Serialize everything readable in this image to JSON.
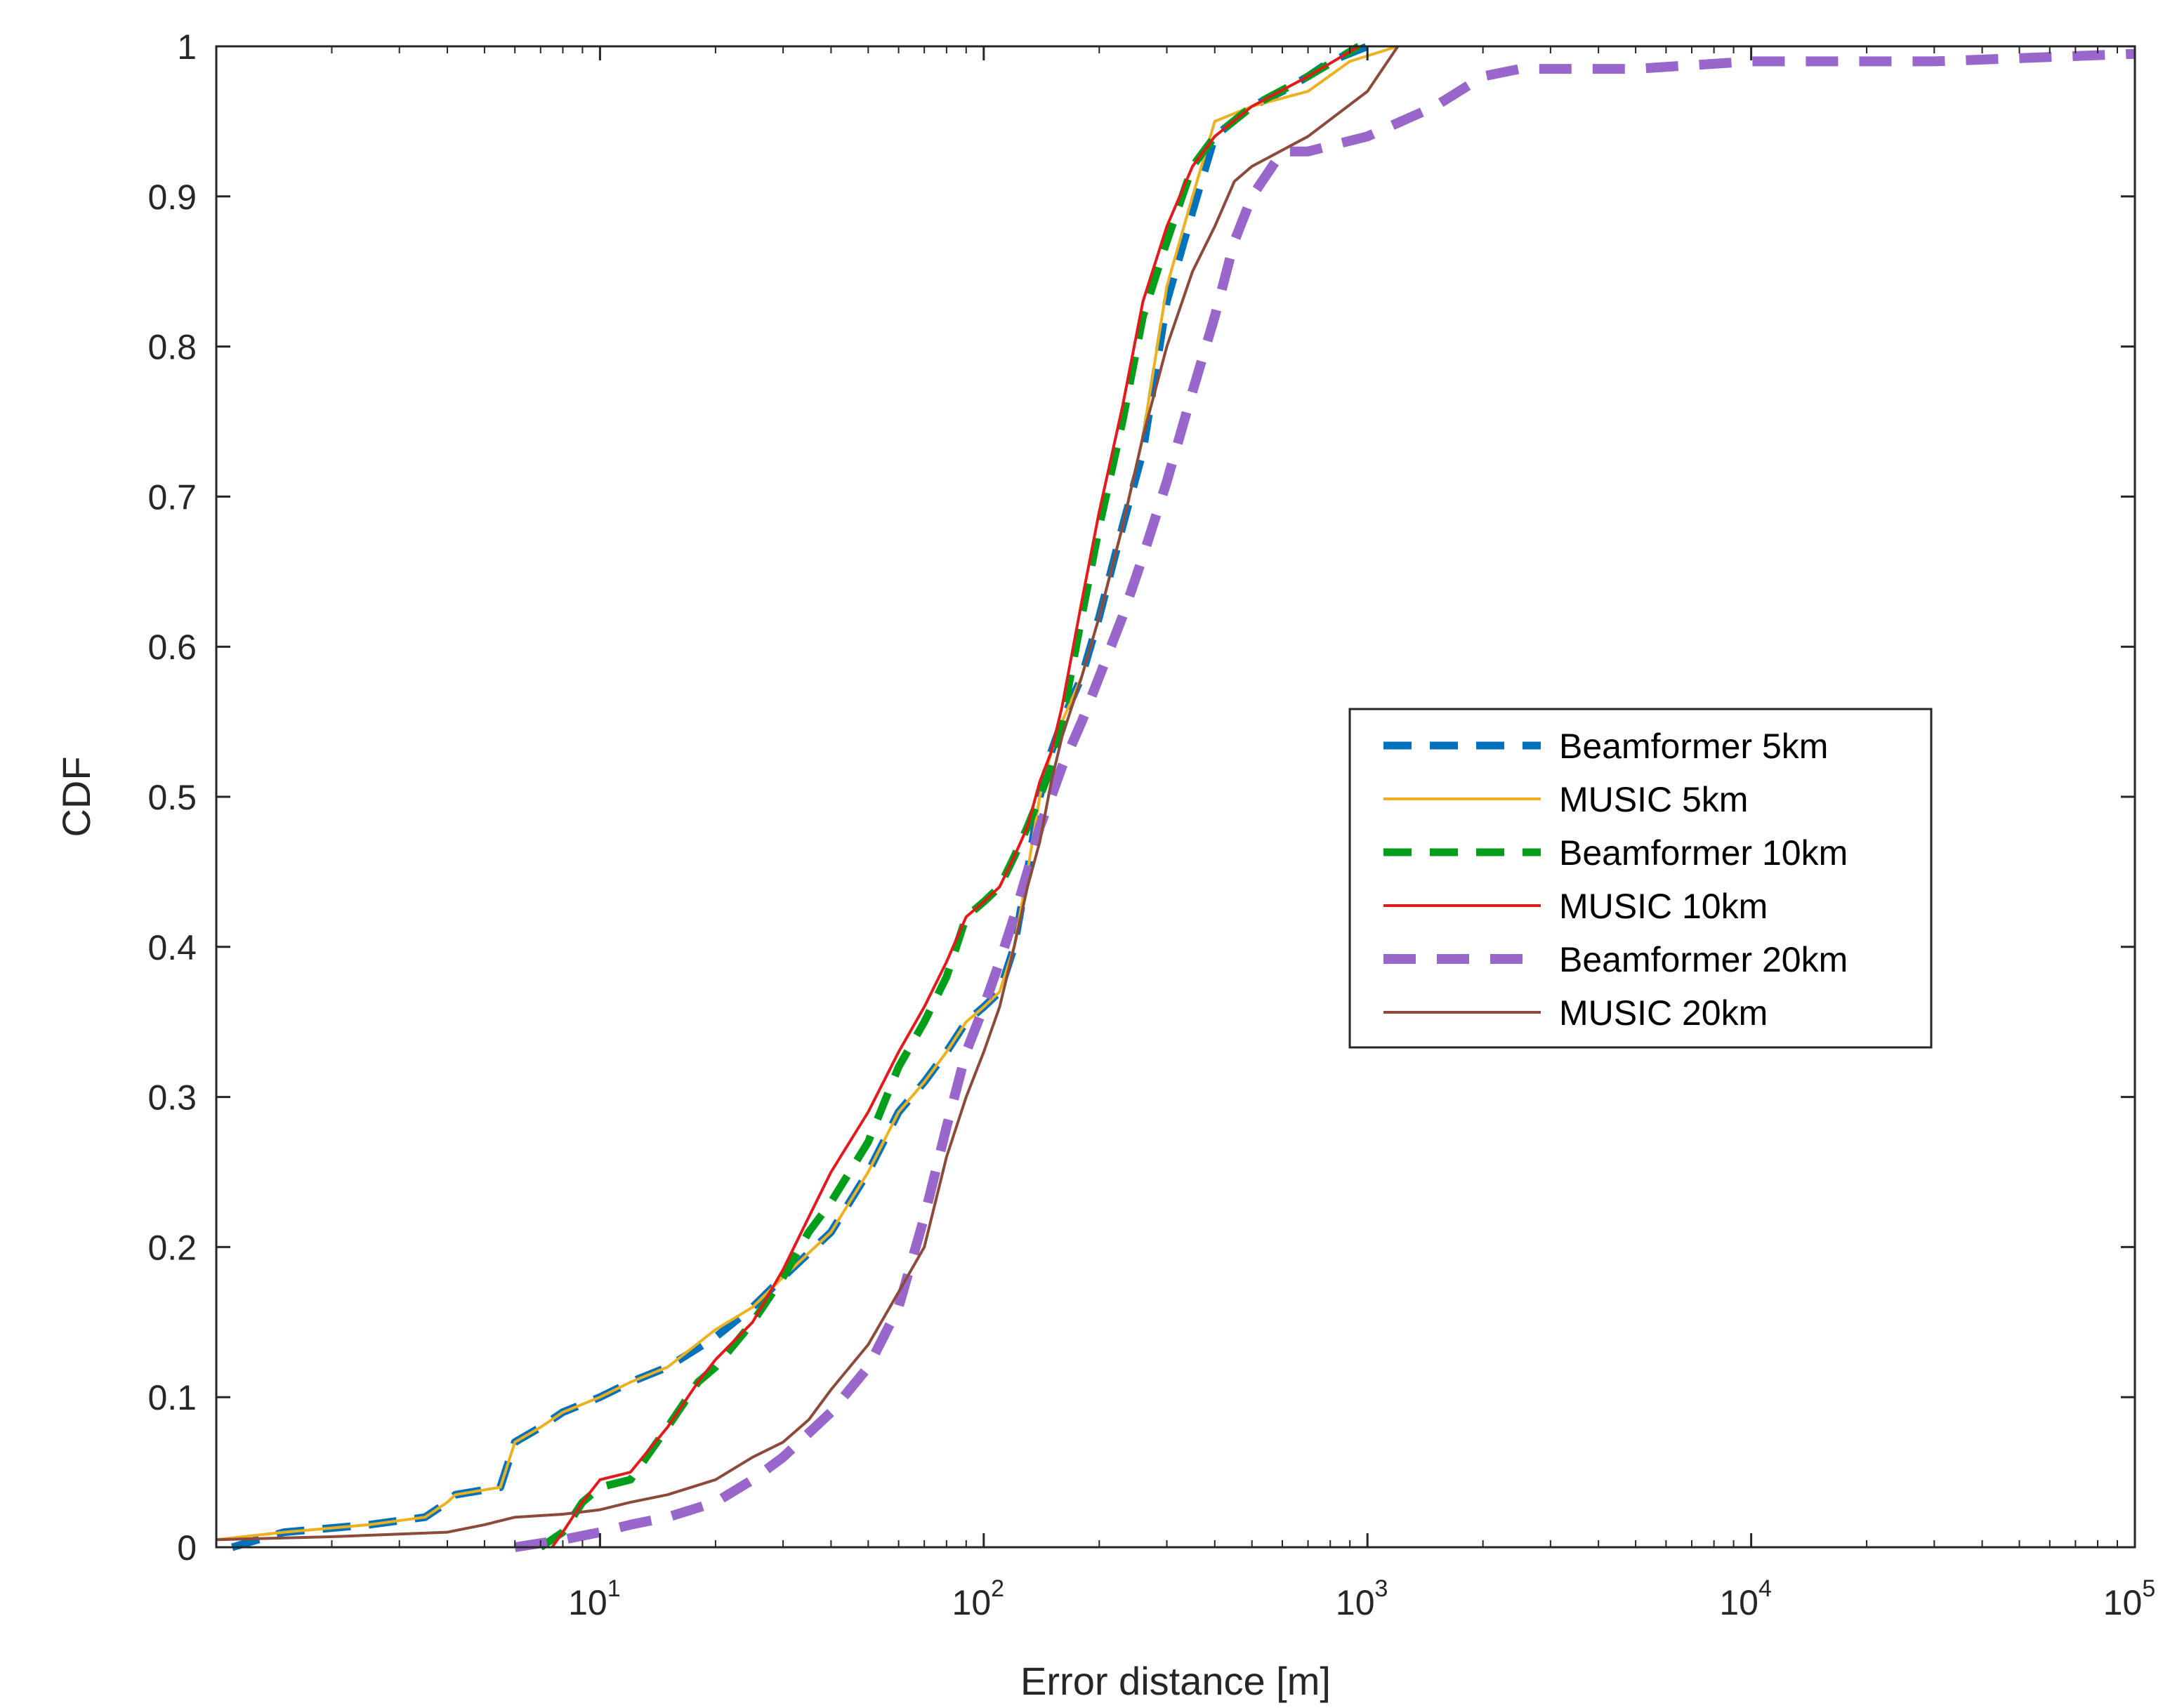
{
  "chart_data": {
    "type": "line",
    "title": "",
    "xlabel": "Error distance [m]",
    "ylabel": "CDF",
    "xscale": "log",
    "xlim": [
      1,
      100000
    ],
    "ylim": [
      0,
      1
    ],
    "grid": false,
    "legend_position": "right-center",
    "yticks": [
      0,
      0.1,
      0.2,
      0.3,
      0.4,
      0.5,
      0.6,
      0.7,
      0.8,
      0.9,
      1
    ],
    "ytick_labels": [
      "0",
      "0.1",
      "0.2",
      "0.3",
      "0.4",
      "0.5",
      "0.6",
      "0.7",
      "0.8",
      "0.9",
      "1"
    ],
    "xticks": [
      10,
      100,
      1000,
      10000,
      100000
    ],
    "xtick_labels": [
      {
        "base": "10",
        "exp": "1"
      },
      {
        "base": "10",
        "exp": "2"
      },
      {
        "base": "10",
        "exp": "3"
      },
      {
        "base": "10",
        "exp": "4"
      },
      {
        "base": "10",
        "exp": "5"
      }
    ],
    "series": [
      {
        "name": "Beamformer 5km",
        "color": "#0072BD",
        "style": "dashed",
        "x": [
          1.1,
          1.5,
          2.5,
          3.5,
          4.0,
          4.2,
          5.5,
          6.0,
          7.0,
          8.0,
          10,
          12,
          15,
          20,
          25,
          30,
          40,
          50,
          60,
          70,
          80,
          90,
          100,
          110,
          120,
          130,
          140,
          150,
          160,
          180,
          200,
          230,
          260,
          300,
          350,
          400,
          500,
          600,
          700,
          800,
          1000
        ],
        "y": [
          0.0,
          0.01,
          0.015,
          0.02,
          0.03,
          0.035,
          0.04,
          0.07,
          0.08,
          0.09,
          0.1,
          0.11,
          0.12,
          0.14,
          0.16,
          0.18,
          0.21,
          0.25,
          0.29,
          0.31,
          0.33,
          0.35,
          0.36,
          0.37,
          0.4,
          0.45,
          0.5,
          0.53,
          0.55,
          0.58,
          0.62,
          0.68,
          0.73,
          0.83,
          0.89,
          0.94,
          0.96,
          0.97,
          0.98,
          0.99,
          1.0
        ]
      },
      {
        "name": "MUSIC 5km",
        "color": "#EDB120",
        "style": "solid",
        "x": [
          1.0,
          1.5,
          2.5,
          3.5,
          4.0,
          4.2,
          5.5,
          6.0,
          7.0,
          8.0,
          10,
          12,
          15,
          20,
          25,
          30,
          40,
          50,
          60,
          70,
          80,
          90,
          100,
          110,
          120,
          130,
          140,
          150,
          160,
          180,
          200,
          230,
          260,
          300,
          350,
          400,
          500,
          700,
          900,
          1200
        ],
        "y": [
          0.005,
          0.01,
          0.015,
          0.02,
          0.03,
          0.035,
          0.04,
          0.07,
          0.08,
          0.09,
          0.1,
          0.11,
          0.12,
          0.145,
          0.16,
          0.18,
          0.21,
          0.25,
          0.29,
          0.31,
          0.33,
          0.35,
          0.36,
          0.37,
          0.4,
          0.45,
          0.5,
          0.53,
          0.55,
          0.58,
          0.62,
          0.68,
          0.74,
          0.84,
          0.9,
          0.95,
          0.96,
          0.97,
          0.99,
          1.0
        ]
      },
      {
        "name": "Beamformer 10km",
        "color": "#009E1A",
        "style": "dashed",
        "x": [
          7.0,
          8.0,
          9.0,
          10,
          12,
          15,
          18,
          20,
          25,
          30,
          35,
          40,
          50,
          60,
          70,
          80,
          90,
          100,
          110,
          120,
          130,
          140,
          150,
          160,
          180,
          200,
          230,
          260,
          300,
          350,
          400,
          500,
          700,
          950
        ],
        "y": [
          0.0,
          0.01,
          0.03,
          0.04,
          0.045,
          0.08,
          0.11,
          0.12,
          0.15,
          0.18,
          0.21,
          0.23,
          0.27,
          0.32,
          0.35,
          0.38,
          0.42,
          0.43,
          0.44,
          0.46,
          0.48,
          0.5,
          0.52,
          0.55,
          0.62,
          0.68,
          0.75,
          0.82,
          0.87,
          0.92,
          0.94,
          0.96,
          0.98,
          1.0
        ]
      },
      {
        "name": "MUSIC 10km",
        "color": "#E31A1C",
        "style": "solid",
        "x": [
          7.5,
          8.0,
          9.0,
          10,
          12,
          15,
          18,
          20,
          25,
          30,
          35,
          40,
          50,
          60,
          70,
          80,
          90,
          100,
          110,
          120,
          130,
          140,
          150,
          160,
          180,
          200,
          230,
          260,
          300,
          350,
          400,
          500,
          700,
          950
        ],
        "y": [
          0.0,
          0.01,
          0.03,
          0.045,
          0.05,
          0.08,
          0.11,
          0.125,
          0.15,
          0.185,
          0.22,
          0.25,
          0.29,
          0.33,
          0.36,
          0.39,
          0.42,
          0.43,
          0.44,
          0.46,
          0.48,
          0.51,
          0.53,
          0.56,
          0.63,
          0.69,
          0.76,
          0.83,
          0.88,
          0.92,
          0.94,
          0.96,
          0.98,
          1.0
        ]
      },
      {
        "name": "Beamformer 20km",
        "color": "#9966CC",
        "style": "dashed",
        "x": [
          6.0,
          8.0,
          10,
          12,
          15,
          20,
          25,
          30,
          40,
          50,
          60,
          70,
          80,
          90,
          100,
          110,
          120,
          130,
          140,
          150,
          160,
          180,
          200,
          230,
          260,
          300,
          350,
          400,
          450,
          500,
          600,
          700,
          1000,
          1500,
          2000,
          2500,
          5000,
          10000,
          30000,
          100000
        ],
        "y": [
          0.0,
          0.005,
          0.01,
          0.015,
          0.02,
          0.03,
          0.045,
          0.06,
          0.09,
          0.12,
          0.16,
          0.22,
          0.28,
          0.33,
          0.36,
          0.39,
          0.42,
          0.45,
          0.48,
          0.5,
          0.52,
          0.55,
          0.58,
          0.62,
          0.66,
          0.71,
          0.77,
          0.82,
          0.87,
          0.9,
          0.93,
          0.93,
          0.94,
          0.96,
          0.98,
          0.985,
          0.985,
          0.99,
          0.99,
          0.995
        ]
      },
      {
        "name": "MUSIC 20km",
        "color": "#8C4B3A",
        "style": "solid",
        "x": [
          1.0,
          2.0,
          4.0,
          5.0,
          6.0,
          8.0,
          10,
          12,
          15,
          20,
          25,
          30,
          35,
          40,
          50,
          60,
          70,
          80,
          90,
          100,
          110,
          120,
          130,
          140,
          150,
          160,
          180,
          200,
          230,
          260,
          300,
          350,
          400,
          450,
          500,
          700,
          1000,
          1200
        ],
        "y": [
          0.005,
          0.007,
          0.01,
          0.015,
          0.02,
          0.022,
          0.025,
          0.03,
          0.035,
          0.045,
          0.06,
          0.07,
          0.085,
          0.105,
          0.135,
          0.17,
          0.2,
          0.26,
          0.3,
          0.33,
          0.36,
          0.4,
          0.44,
          0.47,
          0.51,
          0.54,
          0.58,
          0.62,
          0.68,
          0.74,
          0.8,
          0.85,
          0.88,
          0.91,
          0.92,
          0.94,
          0.97,
          1.0
        ]
      }
    ]
  }
}
